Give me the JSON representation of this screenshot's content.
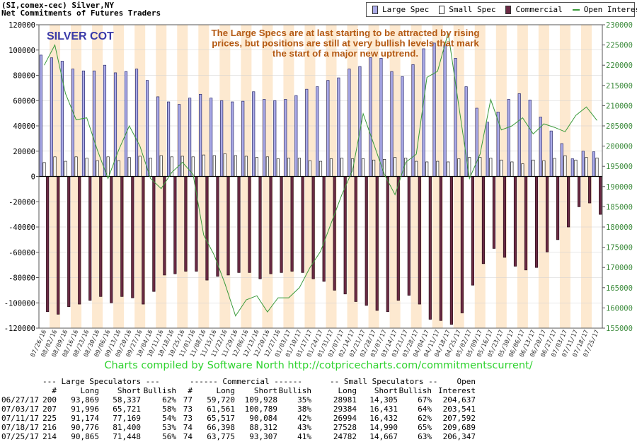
{
  "header": {
    "line1": "(SI,comex-cec) Silver,NY",
    "line2": "Net Commitments of Futures Traders"
  },
  "legend": {
    "items": [
      {
        "label": "Large Spec",
        "kind": "bar",
        "color": "#aaaae8"
      },
      {
        "label": "Small Spec",
        "kind": "bar",
        "color": "#ffffff"
      },
      {
        "label": "Commercial",
        "kind": "bar",
        "color": "#6b2a44"
      },
      {
        "label": "Open Interest",
        "kind": "line",
        "color": "#3a9a3a"
      }
    ]
  },
  "chart_data": {
    "type": "bar",
    "title": "SILVER COT",
    "annotation": [
      "The Large Specs are at last starting to be attracted by rising",
      "prices, but positions are still at very bullish levels that mark",
      "the start of a major new uptrend."
    ],
    "ylim": [
      -120000,
      120000
    ],
    "y_ticks": [
      120000,
      100000,
      80000,
      60000,
      40000,
      20000,
      0,
      -20000,
      -40000,
      -60000,
      -80000,
      -100000,
      -120000
    ],
    "y2lim": [
      155000,
      230000
    ],
    "y2_ticks": [
      230000,
      225000,
      220000,
      215000,
      210000,
      205000,
      200000,
      195000,
      190000,
      185000,
      180000,
      175000,
      170000,
      165000,
      160000,
      155000
    ],
    "x_tick_labels": [
      "07/26/16",
      "08/02/16",
      "08/09/16",
      "08/16/16",
      "08/23/16",
      "08/30/16",
      "09/06/16",
      "09/13/16",
      "09/20/16",
      "09/27/16",
      "10/04/16",
      "10/11/16",
      "10/18/16",
      "10/25/16",
      "11/01/16",
      "11/08/16",
      "11/15/16",
      "11/22/16",
      "11/29/16",
      "12/06/16",
      "12/13/16",
      "12/20/16",
      "12/27/16",
      "01/03/17",
      "01/10/17",
      "01/17/17",
      "01/24/17",
      "01/31/17",
      "02/07/17",
      "02/14/17",
      "02/21/17",
      "02/28/17",
      "03/07/17",
      "03/14/17",
      "03/21/17",
      "03/28/17",
      "04/04/17",
      "04/11/17",
      "04/18/17",
      "04/25/17",
      "05/02/17",
      "05/09/17",
      "05/16/17",
      "05/23/17",
      "05/30/17",
      "06/06/17",
      "06/13/17",
      "06/20/17",
      "06/27/17",
      "07/03/17",
      "07/11/17",
      "07/18/17",
      "07/25/17"
    ],
    "series": [
      {
        "name": "Large Spec",
        "color": "#aaaae8",
        "values": [
          96000,
          93869,
          91200,
          85000,
          83500,
          83500,
          88000,
          82000,
          83000,
          85000,
          76000,
          63000,
          59000,
          57000,
          62000,
          65000,
          62000,
          60000,
          59000,
          59500,
          67000,
          61000,
          60000,
          61000,
          64000,
          69000,
          71000,
          76000,
          78000,
          85000,
          87000,
          94000,
          93500,
          83000,
          79000,
          88500,
          101000,
          105500,
          104000,
          93500,
          71000,
          54000,
          43000,
          51000,
          61000,
          65500,
          60500,
          47000,
          36000,
          26000,
          14000,
          20000,
          19500
        ]
      },
      {
        "name": "Small Spec",
        "color": "#ffffff",
        "values": [
          11000,
          15500,
          12000,
          15500,
          14500,
          12500,
          15500,
          12500,
          15000,
          16000,
          14500,
          16500,
          15500,
          16000,
          15500,
          17000,
          16500,
          18000,
          16500,
          16000,
          15000,
          15500,
          14000,
          14500,
          14500,
          12500,
          12000,
          14000,
          14500,
          14000,
          14000,
          13000,
          13500,
          15000,
          14500,
          12000,
          11500,
          12000,
          11500,
          14000,
          15000,
          15000,
          14500,
          13000,
          11500,
          10000,
          13000,
          12500,
          14305,
          16431,
          13000,
          14990,
          14667
        ]
      },
      {
        "name": "Commercial",
        "color": "#6b2a44",
        "values": [
          -107000,
          -109000,
          -103000,
          -101000,
          -98000,
          -95000,
          -100000,
          -95000,
          -96000,
          -101000,
          -91000,
          -78000,
          -77000,
          -75000,
          -75000,
          -82000,
          -79000,
          -78000,
          -76000,
          -76000,
          -81000,
          -77000,
          -76000,
          -75000,
          -76000,
          -81000,
          -83000,
          -90000,
          -93000,
          -99000,
          -102000,
          -106000,
          -107000,
          -98000,
          -94000,
          -101000,
          -113000,
          -114000,
          -117000,
          -108000,
          -86000,
          -69000,
          -57000,
          -64000,
          -71000,
          -74000,
          -72000,
          -59720,
          -50000,
          -40000,
          -24000,
          -21000,
          -30000
        ]
      },
      {
        "name": "Open Interest",
        "color": "#3a9a3a",
        "axis": "right",
        "values": [
          220000,
          225000,
          213000,
          206500,
          207000,
          199000,
          192000,
          199000,
          205000,
          200000,
          192000,
          189500,
          193500,
          196000,
          193000,
          178000,
          173000,
          166000,
          158000,
          162000,
          163000,
          159000,
          162500,
          162500,
          165000,
          170000,
          174000,
          181000,
          188000,
          194000,
          208000,
          200500,
          193000,
          188000,
          196000,
          198000,
          217000,
          218500,
          228000,
          210000,
          192000,
          198000,
          211500,
          204000,
          205000,
          207000,
          203000,
          205500,
          204637,
          203541,
          207592,
          209689,
          206347
        ]
      }
    ]
  },
  "credit": "Charts compiled by Software North  http://cotpricecharts.com/commitmentscurrent/",
  "table": {
    "group_headers": [
      "--- Large Speculators ---",
      "------ Commercial ------",
      "-- Small Speculators --",
      "Open"
    ],
    "columns": [
      "#",
      "Long",
      "Short",
      "Bullish",
      "#",
      "Long",
      "Short",
      "Bullish",
      "Long",
      "Short",
      "Bullish",
      "Interest"
    ],
    "rows": [
      {
        "date": "06/27/17",
        "ls_n": "200",
        "ls_long": "93,869",
        "ls_short": "58,337",
        "ls_bull": "62%",
        "c_n": "77",
        "c_long": "59,720",
        "c_short": "109,928",
        "c_bull": "35%",
        "ss_long": "28981",
        "ss_short": "14,305",
        "ss_bull": "67%",
        "oi": "204,637"
      },
      {
        "date": "07/03/17",
        "ls_n": "207",
        "ls_long": "91,996",
        "ls_short": "65,721",
        "ls_bull": "58%",
        "c_n": "73",
        "c_long": "61,561",
        "c_short": "100,789",
        "c_bull": "38%",
        "ss_long": "29384",
        "ss_short": "16,431",
        "ss_bull": "64%",
        "oi": "203,541"
      },
      {
        "date": "07/11/17",
        "ls_n": "225",
        "ls_long": "91,174",
        "ls_short": "77,169",
        "ls_bull": "54%",
        "c_n": "73",
        "c_long": "65,517",
        "c_short": "90,084",
        "c_bull": "42%",
        "ss_long": "26994",
        "ss_short": "16,432",
        "ss_bull": "62%",
        "oi": "207,592"
      },
      {
        "date": "07/18/17",
        "ls_n": "216",
        "ls_long": "90,776",
        "ls_short": "81,400",
        "ls_bull": "53%",
        "c_n": "74",
        "c_long": "66,398",
        "c_short": "88,312",
        "c_bull": "43%",
        "ss_long": "27528",
        "ss_short": "14,990",
        "ss_bull": "65%",
        "oi": "209,689"
      },
      {
        "date": "07/25/17",
        "ls_n": "214",
        "ls_long": "90,865",
        "ls_short": "71,448",
        "ls_bull": "56%",
        "c_n": "74",
        "c_long": "63,775",
        "c_short": "93,307",
        "c_bull": "41%",
        "ss_long": "24782",
        "ss_short": "14,667",
        "ss_bull": "63%",
        "oi": "206,347"
      }
    ]
  }
}
